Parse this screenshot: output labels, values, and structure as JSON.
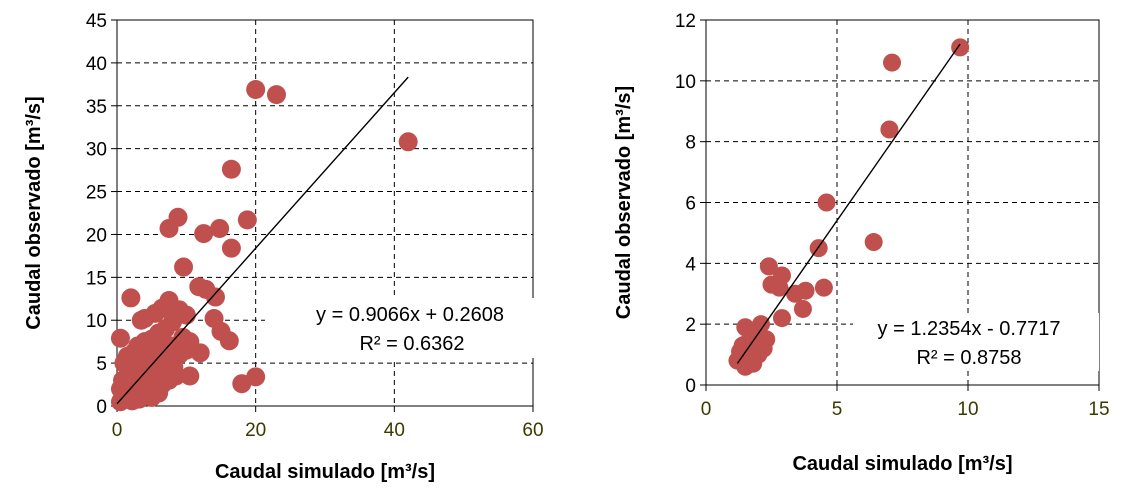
{
  "chart_data": [
    {
      "type": "scatter",
      "title": "",
      "xlabel": "Caudal simulado [m³/s]",
      "ylabel": "Caudal observado [m³/s]",
      "xlim": [
        0,
        60
      ],
      "ylim": [
        0,
        45
      ],
      "xticks": [
        0,
        20,
        40,
        60
      ],
      "yticks": [
        0,
        5,
        10,
        15,
        20,
        25,
        30,
        35,
        40,
        45
      ],
      "grid": true,
      "marker_color": "#c0504d",
      "trendline": {
        "slope": 0.9066,
        "intercept": 0.2608,
        "x_range": [
          0,
          42
        ]
      },
      "equation": "y = 0.9066x + 0.2608",
      "r2": "R² = 0.6362",
      "points": [
        [
          42.0,
          30.8
        ],
        [
          20.0,
          36.9
        ],
        [
          23.0,
          36.3
        ],
        [
          16.5,
          27.6
        ],
        [
          18.8,
          21.7
        ],
        [
          8.8,
          22.0
        ],
        [
          7.5,
          20.7
        ],
        [
          12.5,
          20.1
        ],
        [
          14.8,
          20.7
        ],
        [
          16.5,
          18.4
        ],
        [
          9.6,
          16.2
        ],
        [
          7.5,
          12.3
        ],
        [
          11.8,
          13.9
        ],
        [
          12.8,
          13.6
        ],
        [
          14.2,
          12.7
        ],
        [
          14.0,
          10.2
        ],
        [
          15.0,
          8.7
        ],
        [
          16.2,
          7.6
        ],
        [
          18.0,
          2.6
        ],
        [
          20.0,
          3.4
        ],
        [
          12.0,
          6.2
        ],
        [
          10.5,
          3.5
        ],
        [
          2.0,
          12.6
        ],
        [
          0.5,
          7.9
        ],
        [
          3.5,
          10.0
        ],
        [
          4.0,
          10.2
        ],
        [
          5.5,
          10.8
        ],
        [
          6.5,
          11.4
        ],
        [
          9.0,
          11.2
        ],
        [
          10.0,
          10.6
        ],
        [
          8.0,
          9.8
        ],
        [
          7.0,
          9.0
        ],
        [
          6.0,
          8.5
        ],
        [
          5.0,
          7.8
        ],
        [
          4.0,
          7.5
        ],
        [
          3.0,
          7.0
        ],
        [
          2.5,
          6.3
        ],
        [
          1.5,
          5.8
        ],
        [
          1.0,
          5.0
        ],
        [
          2.0,
          4.5
        ],
        [
          3.0,
          4.2
        ],
        [
          4.0,
          4.0
        ],
        [
          5.0,
          3.8
        ],
        [
          6.0,
          4.5
        ],
        [
          7.0,
          5.2
        ],
        [
          8.0,
          5.5
        ],
        [
          9.0,
          6.0
        ],
        [
          10.0,
          6.5
        ],
        [
          8.5,
          3.5
        ],
        [
          7.5,
          3.0
        ],
        [
          6.5,
          2.5
        ],
        [
          5.5,
          2.2
        ],
        [
          4.5,
          2.0
        ],
        [
          3.5,
          1.8
        ],
        [
          2.5,
          1.5
        ],
        [
          1.5,
          1.2
        ],
        [
          1.0,
          0.8
        ],
        [
          0.5,
          0.5
        ],
        [
          0.5,
          2.0
        ],
        [
          0.8,
          3.0
        ],
        [
          1.2,
          2.5
        ],
        [
          2.0,
          3.0
        ],
        [
          3.0,
          2.8
        ],
        [
          4.0,
          1.2
        ],
        [
          5.0,
          1.0
        ],
        [
          6.0,
          1.5
        ],
        [
          6.8,
          6.2
        ],
        [
          5.8,
          6.0
        ],
        [
          4.8,
          5.5
        ],
        [
          3.8,
          5.2
        ],
        [
          2.8,
          5.0
        ],
        [
          1.8,
          3.8
        ],
        [
          0.8,
          1.5
        ],
        [
          2.2,
          0.6
        ],
        [
          3.2,
          0.8
        ],
        [
          7.8,
          7.0
        ],
        [
          9.5,
          8.0
        ],
        [
          10.5,
          7.5
        ],
        [
          6.2,
          7.2
        ],
        [
          8.2,
          4.5
        ]
      ]
    },
    {
      "type": "scatter",
      "title": "",
      "xlabel": "Caudal simulado [m³/s]",
      "ylabel": "Caudal observado [m³/s]",
      "xlim": [
        0,
        15
      ],
      "ylim": [
        0,
        12
      ],
      "xticks": [
        0,
        5,
        10,
        15
      ],
      "yticks": [
        0,
        2,
        4,
        6,
        8,
        10,
        12
      ],
      "grid": true,
      "marker_color": "#c0504d",
      "trendline": {
        "slope": 1.2354,
        "intercept": -0.7717,
        "x_range": [
          1.2,
          9.7
        ]
      },
      "equation": "y = 1.2354x - 0.7717",
      "r2": "R² = 0.8758",
      "points": [
        [
          9.7,
          11.1
        ],
        [
          7.1,
          10.6
        ],
        [
          7.0,
          8.4
        ],
        [
          4.6,
          6.0
        ],
        [
          6.4,
          4.7
        ],
        [
          4.3,
          4.5
        ],
        [
          2.4,
          3.9
        ],
        [
          2.9,
          3.6
        ],
        [
          2.5,
          3.3
        ],
        [
          2.8,
          3.2
        ],
        [
          3.4,
          3.0
        ],
        [
          3.8,
          3.1
        ],
        [
          4.5,
          3.2
        ],
        [
          3.7,
          2.5
        ],
        [
          2.9,
          2.2
        ],
        [
          2.3,
          1.5
        ],
        [
          2.1,
          2.0
        ],
        [
          1.9,
          1.8
        ],
        [
          1.7,
          1.6
        ],
        [
          1.5,
          1.9
        ],
        [
          1.4,
          1.3
        ],
        [
          1.3,
          1.1
        ],
        [
          1.6,
          0.9
        ],
        [
          1.8,
          0.7
        ],
        [
          1.5,
          0.6
        ],
        [
          2.0,
          1.0
        ],
        [
          1.2,
          0.8
        ],
        [
          1.9,
          1.4
        ],
        [
          2.2,
          1.2
        ],
        [
          1.6,
          1.4
        ]
      ]
    }
  ]
}
